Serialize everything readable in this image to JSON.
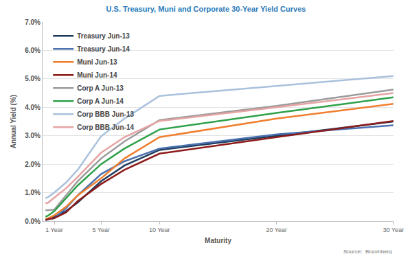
{
  "chart_data": {
    "type": "line",
    "title": "U.S. Treasury, Muni and Corporate 30-Year Yield Curves",
    "x_label": "Maturity",
    "y_label": "Annual Yield (%)",
    "source": "Source:  Bloomberg",
    "x": [
      0.25,
      0.5,
      1,
      2,
      3,
      5,
      7,
      10,
      20,
      30
    ],
    "series": [
      {
        "name": "Treasury Jun-13",
        "color": "#1f3b5c",
        "values": [
          0.04,
          0.08,
          0.15,
          0.35,
          0.65,
          1.4,
          1.95,
          2.5,
          3.0,
          3.5
        ]
      },
      {
        "name": "Treasury Jun-14",
        "color": "#4a72b0",
        "values": [
          0.03,
          0.06,
          0.1,
          0.45,
          0.9,
          1.65,
          2.1,
          2.55,
          3.05,
          3.37
        ]
      },
      {
        "name": "Muni Jun-13",
        "color": "#ef7f2f",
        "values": [
          0.06,
          0.1,
          0.2,
          0.5,
          0.9,
          1.5,
          2.2,
          2.95,
          3.6,
          4.12
        ]
      },
      {
        "name": "Muni Jun-14",
        "color": "#8b1a1a",
        "values": [
          0.04,
          0.07,
          0.1,
          0.3,
          0.7,
          1.3,
          1.8,
          2.37,
          2.95,
          3.52
        ]
      },
      {
        "name": "Corp A Jun-13",
        "color": "#9a9a9a",
        "values": [
          0.38,
          0.38,
          0.4,
          0.9,
          1.4,
          2.2,
          2.8,
          3.55,
          4.05,
          4.62
        ]
      },
      {
        "name": "Corp A Jun-14",
        "color": "#2ea04a",
        "values": [
          0.15,
          0.2,
          0.35,
          0.8,
          1.25,
          2.0,
          2.55,
          3.22,
          3.8,
          4.35
        ]
      },
      {
        "name": "Corp BBB Jun-13",
        "color": "#a9c1dc",
        "values": [
          0.8,
          0.85,
          1.0,
          1.35,
          1.8,
          2.98,
          3.6,
          4.4,
          4.75,
          5.1
        ]
      },
      {
        "name": "Corp BBB Jun-14",
        "color": "#e6a3a3",
        "values": [
          0.62,
          0.65,
          0.82,
          1.15,
          1.55,
          2.4,
          2.95,
          3.52,
          4.0,
          4.5
        ]
      }
    ],
    "xlim": [
      0,
      30
    ],
    "xticks": [
      {
        "value": 1,
        "label": "1 Year"
      },
      {
        "value": 5,
        "label": "5 Year"
      },
      {
        "value": 10,
        "label": "10 Year"
      },
      {
        "value": 20,
        "label": "20 Year"
      },
      {
        "value": 30,
        "label": "30 Year"
      }
    ],
    "ylim": [
      0,
      7
    ],
    "yticks": [
      {
        "value": 0,
        "label": "0.0%"
      },
      {
        "value": 1,
        "label": "1.0%"
      },
      {
        "value": 2,
        "label": "2.0%"
      },
      {
        "value": 3,
        "label": "3.0%"
      },
      {
        "value": 4,
        "label": "4.0%"
      },
      {
        "value": 5,
        "label": "5.0%"
      },
      {
        "value": 6,
        "label": "6.0%"
      },
      {
        "value": 7,
        "label": "7.0%"
      }
    ],
    "grid": "y",
    "legend": "upper left"
  }
}
